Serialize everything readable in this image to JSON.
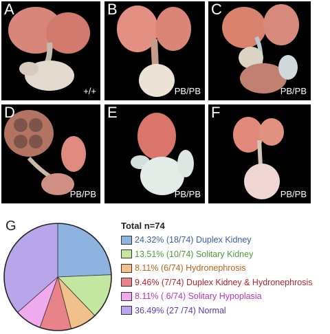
{
  "panels": [
    {
      "letter": "A",
      "genotype": "+/+"
    },
    {
      "letter": "B",
      "genotype": "PB/PB"
    },
    {
      "letter": "C",
      "genotype": "PB/PB"
    },
    {
      "letter": "D",
      "genotype": "PB/PB"
    },
    {
      "letter": "E",
      "genotype": "PB/PB"
    },
    {
      "letter": "F",
      "genotype": "PB/PB"
    }
  ],
  "pie_panel_letter": "G",
  "chart_data": {
    "type": "pie",
    "title": "Total n=74",
    "slices": [
      {
        "percent": "24.32%",
        "count": "(18/74)",
        "label": "Duplex Kidney",
        "value": 24.32,
        "color": "#8fb3e0",
        "text_color": "#3b5ea8"
      },
      {
        "percent": "13.51%",
        "count": "(10/74)",
        "label": "Solitary Kidney",
        "value": 13.51,
        "color": "#c3e6a0",
        "text_color": "#4f9a3a"
      },
      {
        "percent": "8.11%",
        "count": "(6/74)",
        "label": "Hydronephrosis",
        "value": 8.11,
        "color": "#f2c08a",
        "text_color": "#b7651b"
      },
      {
        "percent": "9.46%",
        "count": "(7/74)",
        "label": "Duplex Kidney & Hydronephrosis",
        "value": 9.46,
        "color": "#e8838a",
        "text_color": "#b3252c"
      },
      {
        "percent": "8.11%",
        "count": "( 6/74)",
        "label": "Solitary Hypoplasia",
        "value": 8.11,
        "color": "#f0aaee",
        "text_color": "#b239b0"
      },
      {
        "percent": "36.49%",
        "count": "(27 /74)",
        "label": "Normal",
        "value": 36.49,
        "color": "#b9a6ea",
        "text_color": "#5a3cb0"
      }
    ]
  }
}
